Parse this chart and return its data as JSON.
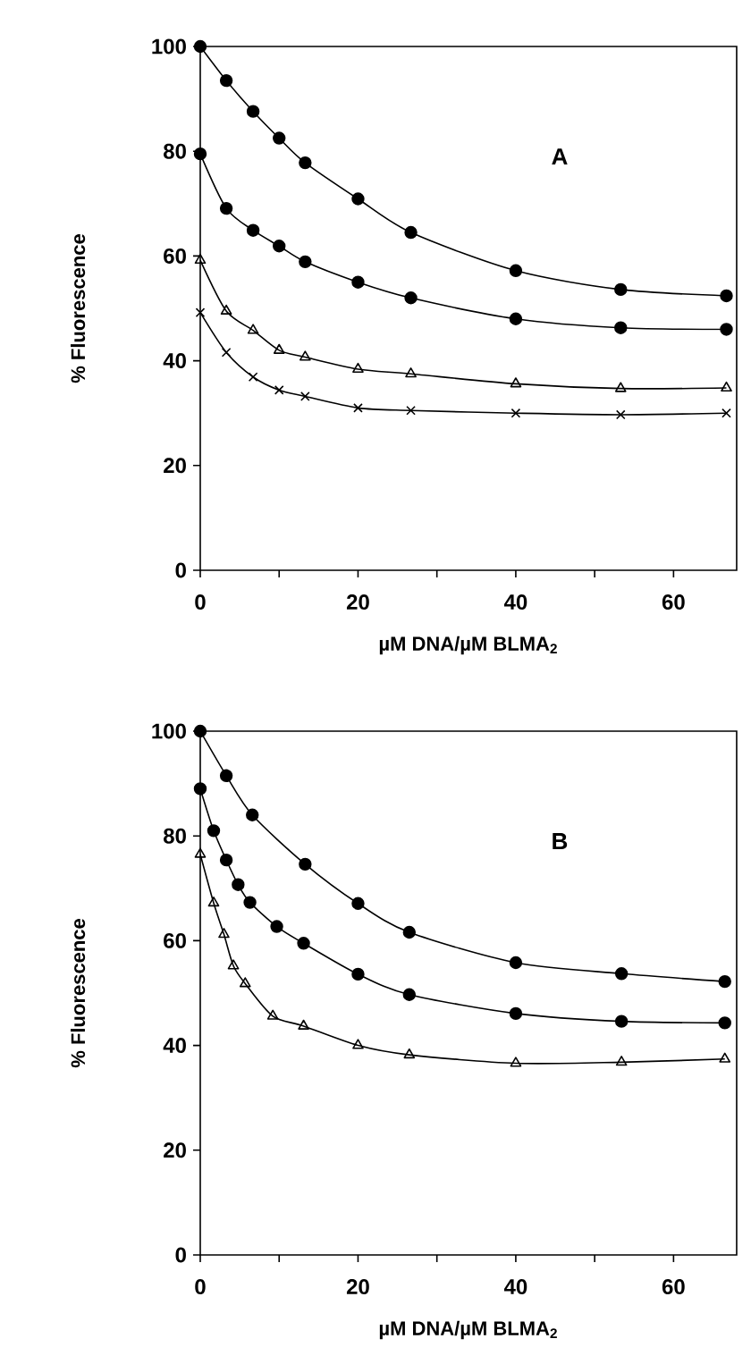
{
  "chart_data": [
    {
      "type": "line",
      "xlabel": "µM DNA/µM BLMA$_{2}$",
      "ylabel": "% Fluorescence",
      "annotations": [
        "A"
      ],
      "xlim": [
        0,
        68
      ],
      "ylim": [
        0,
        100
      ],
      "xticks": [
        0,
        {
          "value": 10,
          "label": null
        },
        20,
        {
          "value": 30,
          "label": null
        },
        40,
        {
          "value": 50,
          "label": null
        },
        60
      ],
      "yticks": [
        0,
        20,
        40,
        60,
        80,
        100
      ],
      "grid": false,
      "line_style": "solid",
      "series": [
        {
          "color": "#000000",
          "marker": "circle",
          "x": [
            0,
            3.3,
            6.7,
            10,
            13.3,
            20,
            26.7,
            40,
            53.3,
            66.7
          ],
          "values": [
            100,
            93.5,
            87.6,
            82.5,
            77.8,
            70.9,
            64.5,
            57.2,
            53.6,
            52.4
          ]
        },
        {
          "color": "#000000",
          "marker": "circle",
          "x": [
            0,
            3.3,
            6.7,
            10,
            13.3,
            20,
            26.7,
            40,
            53.3,
            66.7
          ],
          "values": [
            79.5,
            69.1,
            64.9,
            61.9,
            58.9,
            55,
            52,
            48,
            46.3,
            46
          ]
        },
        {
          "color": "#000000",
          "marker": "triangle",
          "x": [
            0,
            3.3,
            6.7,
            10,
            13.3,
            20,
            26.7,
            40,
            53.3,
            66.7
          ],
          "values": [
            59.2,
            49.5,
            45.8,
            42,
            40.7,
            38.4,
            37.5,
            35.6,
            34.7,
            34.8
          ]
        },
        {
          "color": "#000000",
          "marker": "cross",
          "x": [
            0,
            3.3,
            6.7,
            10,
            13.3,
            20,
            26.7,
            40,
            53.3,
            66.7
          ],
          "values": [
            49.2,
            41.6,
            36.9,
            34.4,
            33.2,
            31,
            30.5,
            30,
            29.7,
            30
          ]
        }
      ]
    },
    {
      "type": "line",
      "xlabel": "µM DNA/µM BLMA$_{2}$",
      "ylabel": "% Fluorescence",
      "annotations": [
        "B"
      ],
      "xlim": [
        0,
        68
      ],
      "ylim": [
        0,
        100
      ],
      "xticks": [
        0,
        {
          "value": 10,
          "label": null
        },
        20,
        {
          "value": 30,
          "label": null
        },
        40,
        {
          "value": 50,
          "label": null
        },
        60
      ],
      "yticks": [
        0,
        20,
        40,
        60,
        80,
        100
      ],
      "grid": false,
      "line_style": "solid",
      "series": [
        {
          "color": "#000000",
          "marker": "circle",
          "x": [
            0,
            3.3,
            6.6,
            13.3,
            20,
            26.5,
            40,
            53.4,
            66.5
          ],
          "values": [
            100,
            91.5,
            84,
            74.6,
            67.1,
            61.6,
            55.8,
            53.7,
            52.2
          ]
        },
        {
          "color": "#000000",
          "marker": "circle",
          "x": [
            0,
            1.7,
            3.3,
            4.8,
            6.3,
            9.7,
            13.1,
            20,
            26.5,
            40,
            53.4,
            66.5
          ],
          "values": [
            89,
            81,
            75.4,
            70.7,
            67.3,
            62.7,
            59.5,
            53.6,
            49.7,
            46.1,
            44.6,
            44.3
          ]
        },
        {
          "color": "#000000",
          "marker": "triangle",
          "x": [
            0,
            1.7,
            3,
            4.2,
            5.7,
            9.2,
            13.1,
            20,
            26.5,
            40,
            53.4,
            66.5
          ],
          "values": [
            76.5,
            67.2,
            61.2,
            55.2,
            51.8,
            45.6,
            43.7,
            40,
            38.2,
            36.6,
            36.8,
            37.4
          ]
        }
      ]
    }
  ]
}
